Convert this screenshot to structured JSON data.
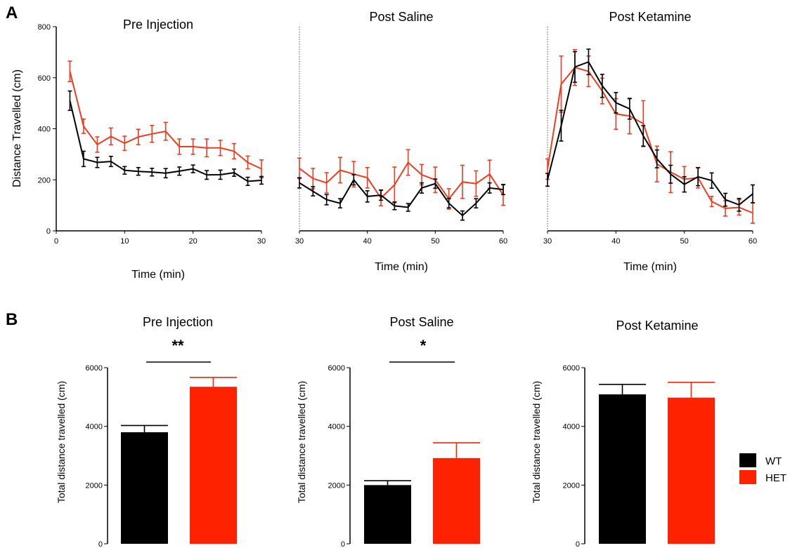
{
  "panels": {
    "a": "A",
    "b": "B"
  },
  "colors": {
    "WT": "#000000",
    "HET": "#ff2200",
    "HET_line": "#f03c1e"
  },
  "legend": [
    {
      "name": "WT",
      "color": "#000000"
    },
    {
      "name": "HET",
      "color": "#ff2200"
    }
  ],
  "chart_data": [
    {
      "type": "line",
      "panel": "A",
      "title": "Pre Injection",
      "xlabel": "Time (min)",
      "ylabel": "Distance Travelled (cm)",
      "xlim": [
        0,
        30
      ],
      "ylim": [
        0,
        800
      ],
      "xticks": [
        0,
        10,
        20,
        30
      ],
      "yticks": [
        0,
        200,
        400,
        600,
        800
      ],
      "x": [
        2,
        4,
        6,
        8,
        10,
        12,
        14,
        16,
        18,
        20,
        22,
        24,
        26,
        28,
        30
      ],
      "series": [
        {
          "name": "WT",
          "values": [
            510,
            282,
            268,
            272,
            237,
            233,
            230,
            226,
            234,
            243,
            219,
            220,
            228,
            194,
            198
          ],
          "err": [
            38,
            30,
            20,
            20,
            15,
            15,
            15,
            18,
            16,
            15,
            17,
            18,
            14,
            16,
            15
          ]
        },
        {
          "name": "HET",
          "values": [
            625,
            410,
            338,
            370,
            343,
            368,
            380,
            390,
            330,
            330,
            325,
            325,
            312,
            268,
            243
          ],
          "err": [
            40,
            28,
            30,
            33,
            28,
            30,
            33,
            35,
            30,
            30,
            35,
            30,
            30,
            25,
            35
          ]
        }
      ]
    },
    {
      "type": "line",
      "panel": "A",
      "title": "Post Saline",
      "xlabel": "Time (min)",
      "ylabel": "",
      "xlim": [
        30,
        60
      ],
      "ylim": [
        0,
        800
      ],
      "xticks": [
        30,
        40,
        50,
        60
      ],
      "x": [
        30,
        32,
        34,
        36,
        38,
        40,
        42,
        44,
        46,
        48,
        50,
        52,
        54,
        56,
        58,
        60
      ],
      "series": [
        {
          "name": "WT",
          "values": [
            188,
            155,
            122,
            108,
            200,
            135,
            140,
            98,
            92,
            168,
            185,
            108,
            60,
            108,
            168,
            162
          ],
          "err": [
            20,
            18,
            20,
            18,
            20,
            22,
            20,
            15,
            15,
            20,
            18,
            18,
            18,
            18,
            20,
            20
          ]
        },
        {
          "name": "HET",
          "values": [
            245,
            205,
            188,
            238,
            222,
            208,
            128,
            180,
            268,
            220,
            200,
            125,
            192,
            185,
            222,
            140
          ],
          "err": [
            40,
            40,
            40,
            50,
            50,
            40,
            30,
            70,
            50,
            40,
            50,
            40,
            65,
            50,
            55,
            40
          ]
        }
      ]
    },
    {
      "type": "line",
      "panel": "A",
      "title": "Post Ketamine",
      "xlabel": "Time (min)",
      "ylabel": "",
      "xlim": [
        30,
        60
      ],
      "ylim": [
        0,
        800
      ],
      "xticks": [
        30,
        40,
        50,
        60
      ],
      "x": [
        30,
        32,
        34,
        36,
        38,
        40,
        42,
        44,
        46,
        48,
        50,
        52,
        54,
        56,
        58,
        60
      ],
      "series": [
        {
          "name": "WT",
          "values": [
            200,
            412,
            642,
            662,
            568,
            502,
            478,
            372,
            282,
            222,
            182,
            212,
            197,
            122,
            102,
            145
          ],
          "err": [
            25,
            60,
            60,
            50,
            45,
            40,
            40,
            40,
            35,
            35,
            30,
            35,
            30,
            25,
            25,
            35
          ]
        },
        {
          "name": "HET",
          "values": [
            242,
            575,
            640,
            625,
            548,
            458,
            450,
            420,
            262,
            230,
            202,
            208,
            115,
            88,
            92,
            70
          ],
          "err": [
            40,
            110,
            70,
            60,
            50,
            60,
            70,
            90,
            70,
            80,
            50,
            40,
            20,
            30,
            30,
            40
          ]
        }
      ]
    },
    {
      "type": "bar",
      "panel": "B",
      "title": "Pre Injection",
      "ylabel": "Total distance travelled (cm)",
      "ylim": [
        0,
        6000
      ],
      "yticks": [
        0,
        2000,
        4000,
        6000
      ],
      "categories": [
        "WT",
        "HET"
      ],
      "values": [
        3800,
        5350
      ],
      "err": [
        230,
        320
      ],
      "significance": "**"
    },
    {
      "type": "bar",
      "panel": "B",
      "title": "Post Saline",
      "ylabel": "Total distance travelled (cm)",
      "ylim": [
        0,
        6000
      ],
      "yticks": [
        0,
        2000,
        4000,
        6000
      ],
      "categories": [
        "WT",
        "HET"
      ],
      "values": [
        2000,
        2920
      ],
      "err": [
        150,
        520
      ],
      "significance": "*"
    },
    {
      "type": "bar",
      "panel": "B",
      "title": "Post Ketamine",
      "ylabel": "Total distance travelled (cm)",
      "ylim": [
        0,
        6000
      ],
      "yticks": [
        0,
        2000,
        4000,
        6000
      ],
      "categories": [
        "WT",
        "HET"
      ],
      "values": [
        5090,
        4980
      ],
      "err": [
        340,
        520
      ],
      "significance": ""
    }
  ]
}
